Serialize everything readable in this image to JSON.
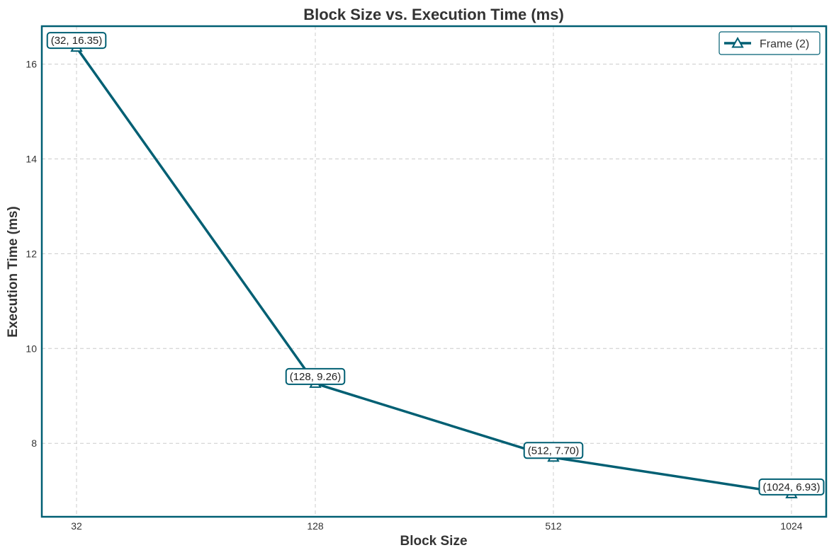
{
  "chart_data": {
    "type": "line",
    "title": "Block Size vs. Execution Time (ms)",
    "xlabel": "Block Size",
    "ylabel": "Execution Time (ms)",
    "x_scale": "categorical",
    "categories": [
      "32",
      "128",
      "512",
      "1024"
    ],
    "ylim": [
      6.45,
      16.8
    ],
    "yticks": [
      8,
      10,
      12,
      14,
      16
    ],
    "grid": true,
    "legend_position": "top-right",
    "series": [
      {
        "name": "Frame (2)",
        "values": [
          16.35,
          9.26,
          7.7,
          6.93
        ],
        "color": "#005f73",
        "marker": "triangle-open"
      }
    ],
    "annotations": [
      "(32, 16.35)",
      "(128, 9.26)",
      "(512, 7.70)",
      "(1024, 6.93)"
    ]
  }
}
